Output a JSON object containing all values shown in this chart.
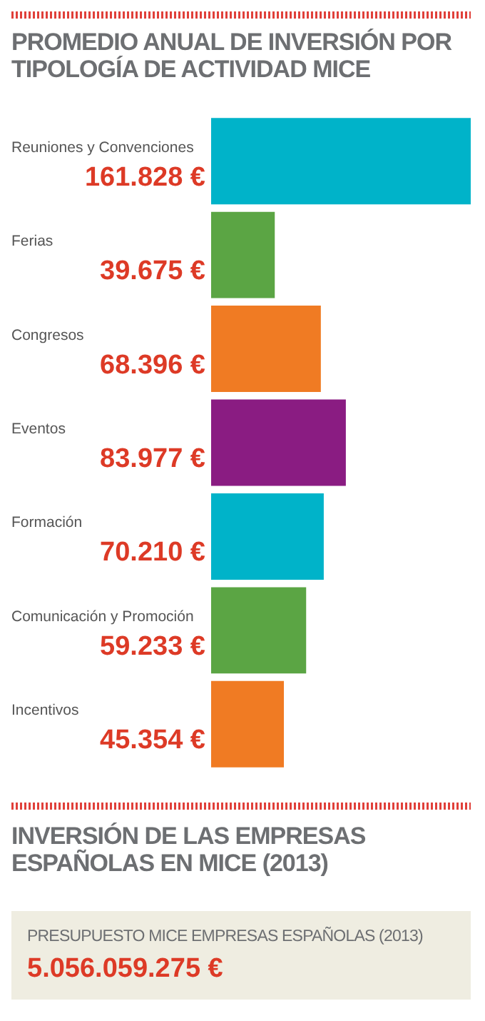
{
  "chart_data": {
    "type": "bar",
    "orientation": "horizontal",
    "title": "PROMEDIO ANUAL DE INVERSIÓN POR TIPOLOGÍA DE ACTIVIDAD MICE",
    "categories": [
      "Reuniones y Convenciones",
      "Ferias",
      "Congresos",
      "Eventos",
      "Formación",
      "Comunicación y Promoción",
      "Incentivos"
    ],
    "values": [
      161828,
      39675,
      68396,
      83977,
      70210,
      59233,
      45354
    ],
    "value_labels": [
      "161.828 €",
      "39.675 €",
      "68.396 €",
      "83.977 €",
      "70.210 €",
      "59.233 €",
      "45.354 €"
    ],
    "colors": [
      "#00b3c9",
      "#5ba544",
      "#f07b23",
      "#8a1c82",
      "#00b3c9",
      "#5ba544",
      "#f07b23"
    ],
    "annotations": [
      "INVERSIÓN DE LAS EMPRESAS ESPAÑOLAS EN MICE (2013)",
      "PRESUPUESTO MICE EMPRESAS ESPAÑOLAS (2013)",
      "5.056.059.275 €"
    ],
    "grid": false
  }
}
